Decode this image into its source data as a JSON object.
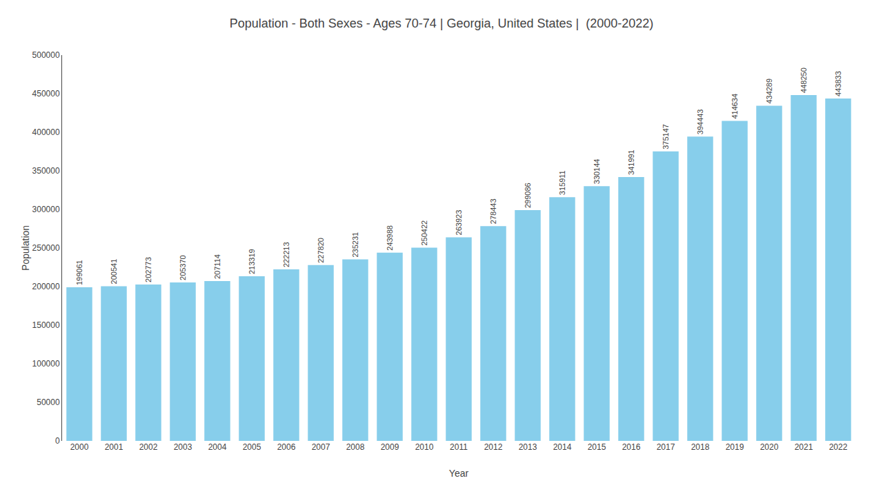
{
  "chart_data": {
    "type": "bar",
    "title": "Population - Both Sexes - Ages 70-74 | Georgia, United States |  (2000-2022)",
    "xlabel": "Year",
    "ylabel": "Population",
    "categories": [
      "2000",
      "2001",
      "2002",
      "2003",
      "2004",
      "2005",
      "2006",
      "2007",
      "2008",
      "2009",
      "2010",
      "2011",
      "2012",
      "2013",
      "2014",
      "2015",
      "2016",
      "2017",
      "2018",
      "2019",
      "2020",
      "2021",
      "2022"
    ],
    "values": [
      199061,
      200541,
      202773,
      205370,
      207114,
      213319,
      222213,
      227820,
      235231,
      243988,
      250422,
      263923,
      278443,
      299086,
      315911,
      330144,
      341991,
      375147,
      394443,
      414634,
      434289,
      448250,
      443833
    ],
    "color": "#87CEEB",
    "ylim": [
      0,
      500000
    ],
    "yticks": [
      0,
      50000,
      100000,
      150000,
      200000,
      250000,
      300000,
      350000,
      400000,
      450000,
      500000
    ],
    "data_labels": true,
    "grid": false
  }
}
